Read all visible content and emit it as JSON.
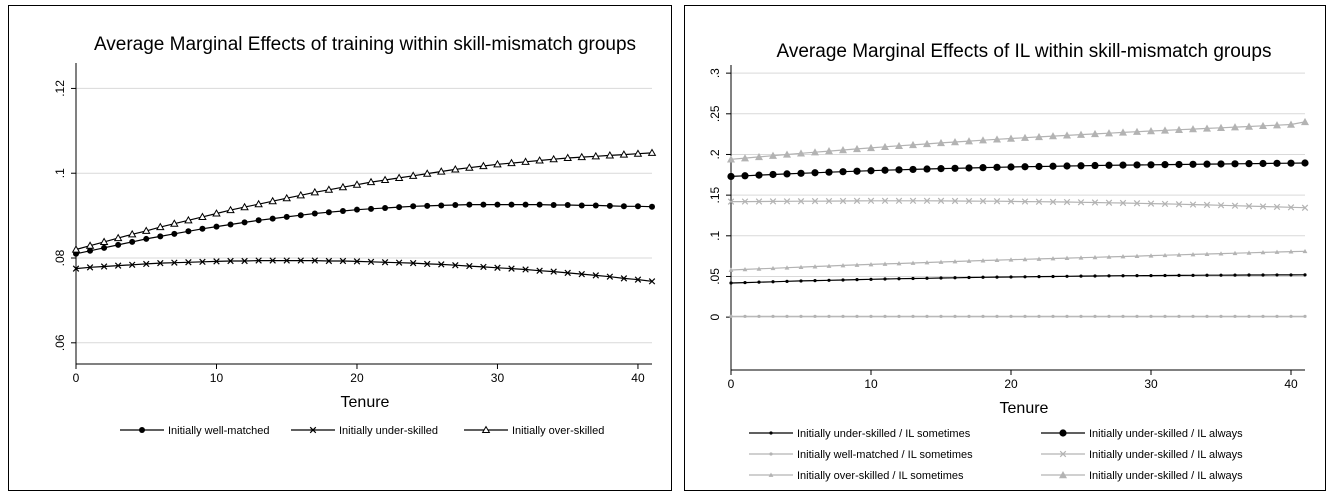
{
  "chart_data": [
    {
      "type": "line",
      "title": "Average Marginal Effects of training within skill-mismatch groups",
      "xlabel": "Tenure",
      "ylabel": "",
      "xlim": [
        0,
        41
      ],
      "ylim": [
        0.055,
        0.126
      ],
      "x_ticks": [
        0,
        10,
        20,
        30,
        40
      ],
      "x_tick_labels": [
        "0",
        "10",
        "20",
        "30",
        "40"
      ],
      "y_ticks": [
        0.06,
        0.08,
        0.1,
        0.12
      ],
      "y_tick_labels": [
        ".06",
        ".08",
        ".1",
        ".12"
      ],
      "grid": true,
      "legend_position": "bottom",
      "x": [
        0,
        1,
        2,
        3,
        4,
        5,
        6,
        7,
        8,
        9,
        10,
        11,
        12,
        13,
        14,
        15,
        16,
        17,
        18,
        19,
        20,
        21,
        22,
        23,
        24,
        25,
        26,
        27,
        28,
        29,
        30,
        31,
        32,
        33,
        34,
        35,
        36,
        37,
        38,
        39,
        40,
        41
      ],
      "series": [
        {
          "name": "Initially well-matched",
          "color": "#000000",
          "marker": "circle",
          "values": [
            0.081,
            0.0817,
            0.0824,
            0.0831,
            0.0838,
            0.0845,
            0.0851,
            0.0857,
            0.0863,
            0.0869,
            0.0874,
            0.0879,
            0.0884,
            0.0889,
            0.0893,
            0.0897,
            0.0901,
            0.0905,
            0.0908,
            0.0911,
            0.0914,
            0.0916,
            0.0918,
            0.092,
            0.0922,
            0.0923,
            0.0924,
            0.0925,
            0.0926,
            0.0926,
            0.0926,
            0.0926,
            0.0926,
            0.0926,
            0.0925,
            0.0925,
            0.0924,
            0.0924,
            0.0923,
            0.0922,
            0.0922,
            0.0921
          ]
        },
        {
          "name": "Initially under-skilled",
          "color": "#000000",
          "marker": "x",
          "values": [
            0.0775,
            0.0778,
            0.078,
            0.0782,
            0.0784,
            0.0786,
            0.0788,
            0.0789,
            0.079,
            0.0791,
            0.0792,
            0.0793,
            0.0793,
            0.0794,
            0.0794,
            0.0794,
            0.0794,
            0.0794,
            0.0793,
            0.0793,
            0.0792,
            0.0791,
            0.079,
            0.0789,
            0.0788,
            0.0786,
            0.0785,
            0.0783,
            0.0781,
            0.0779,
            0.0777,
            0.0775,
            0.0773,
            0.077,
            0.0768,
            0.0765,
            0.0762,
            0.0759,
            0.0756,
            0.0752,
            0.0749,
            0.0745
          ]
        },
        {
          "name": "Initially over-skilled",
          "color": "#000000",
          "marker": "triangle",
          "values": [
            0.082,
            0.0829,
            0.0838,
            0.0847,
            0.0856,
            0.0864,
            0.0873,
            0.0881,
            0.0889,
            0.0897,
            0.0905,
            0.0913,
            0.092,
            0.0927,
            0.0934,
            0.0941,
            0.0948,
            0.0955,
            0.0961,
            0.0967,
            0.0973,
            0.0979,
            0.0984,
            0.0989,
            0.0994,
            0.0999,
            0.1004,
            0.1009,
            0.1013,
            0.1017,
            0.1021,
            0.1024,
            0.1027,
            0.103,
            0.1033,
            0.1036,
            0.1038,
            0.104,
            0.1042,
            0.1044,
            0.1046,
            0.1048
          ]
        }
      ]
    },
    {
      "type": "line",
      "title": "Average Marginal Effects of IL within skill-mismatch groups",
      "xlabel": "Tenure",
      "ylabel": "",
      "xlim": [
        0,
        41
      ],
      "ylim": [
        -0.065,
        0.31
      ],
      "x_ticks": [
        0,
        10,
        20,
        30,
        40
      ],
      "x_tick_labels": [
        "0",
        "10",
        "20",
        "30",
        "40"
      ],
      "y_ticks": [
        0,
        0.05,
        0.1,
        0.15,
        0.2,
        0.25,
        0.3
      ],
      "y_tick_labels": [
        "0",
        ".05",
        ".1",
        ".15",
        ".2",
        ".25",
        ".3"
      ],
      "grid": true,
      "legend_position": "bottom",
      "x": [
        0,
        1,
        2,
        3,
        4,
        5,
        6,
        7,
        8,
        9,
        10,
        11,
        12,
        13,
        14,
        15,
        16,
        17,
        18,
        19,
        20,
        21,
        22,
        23,
        24,
        25,
        26,
        27,
        28,
        29,
        30,
        31,
        32,
        33,
        34,
        35,
        36,
        37,
        38,
        39,
        40,
        41
      ],
      "series": [
        {
          "name": "Initially under-skilled / IL sometimes",
          "color": "#000000",
          "marker": "small-circle",
          "values": [
            0.042,
            0.0425,
            0.043,
            0.0435,
            0.044,
            0.0445,
            0.0449,
            0.0453,
            0.0457,
            0.0461,
            0.0465,
            0.0469,
            0.0472,
            0.0475,
            0.0478,
            0.0481,
            0.0484,
            0.0487,
            0.049,
            0.0492,
            0.0494,
            0.0496,
            0.0498,
            0.05,
            0.0502,
            0.0504,
            0.0506,
            0.0508,
            0.0509,
            0.051,
            0.0511,
            0.0512,
            0.0513,
            0.0514,
            0.0515,
            0.0516,
            0.0517,
            0.0518,
            0.0518,
            0.0519,
            0.0519,
            0.052
          ]
        },
        {
          "name": "Initially under-skilled / IL always",
          "color": "#000000",
          "marker": "large-circle",
          "values": [
            0.173,
            0.1738,
            0.1746,
            0.1754,
            0.1761,
            0.1768,
            0.1775,
            0.1782,
            0.1788,
            0.1794,
            0.18,
            0.1806,
            0.1811,
            0.1816,
            0.1821,
            0.1826,
            0.183,
            0.1834,
            0.1838,
            0.1842,
            0.1846,
            0.1849,
            0.1852,
            0.1855,
            0.1858,
            0.1861,
            0.1864,
            0.1867,
            0.1869,
            0.1871,
            0.1873,
            0.1875,
            0.1877,
            0.1879,
            0.1881,
            0.1883,
            0.1885,
            0.1887,
            0.1889,
            0.1891,
            0.1893,
            0.1895
          ]
        },
        {
          "name": "Initially well-matched / IL sometimes",
          "color": "#b3b3b3",
          "marker": "small-circle",
          "values": [
            0.001,
            0.001,
            0.001,
            0.001,
            0.001,
            0.001,
            0.001,
            0.001,
            0.001,
            0.001,
            0.001,
            0.001,
            0.001,
            0.001,
            0.001,
            0.001,
            0.001,
            0.001,
            0.001,
            0.001,
            0.001,
            0.001,
            0.001,
            0.001,
            0.001,
            0.001,
            0.001,
            0.001,
            0.001,
            0.001,
            0.001,
            0.001,
            0.001,
            0.001,
            0.001,
            0.001,
            0.001,
            0.001,
            0.001,
            0.001,
            0.001,
            0.001
          ]
        },
        {
          "name": "Initially under-skilled / IL always",
          "color": "#b3b3b3",
          "marker": "x",
          "values": [
            0.142,
            0.1421,
            0.1422,
            0.1423,
            0.1424,
            0.1425,
            0.1426,
            0.1427,
            0.1428,
            0.1429,
            0.143,
            0.143,
            0.143,
            0.143,
            0.143,
            0.1429,
            0.1428,
            0.1427,
            0.1426,
            0.1425,
            0.1423,
            0.1421,
            0.1419,
            0.1417,
            0.1415,
            0.1412,
            0.1409,
            0.1406,
            0.1403,
            0.14,
            0.1396,
            0.1392,
            0.1388,
            0.1384,
            0.138,
            0.1375,
            0.137,
            0.1365,
            0.136,
            0.1355,
            0.135,
            0.1345
          ]
        },
        {
          "name": "Initially over-skilled / IL sometimes",
          "color": "#b3b3b3",
          "marker": "small-triangle",
          "values": [
            0.058,
            0.0587,
            0.0594,
            0.0601,
            0.0608,
            0.0615,
            0.0622,
            0.0629,
            0.0636,
            0.0642,
            0.0648,
            0.0654,
            0.066,
            0.0666,
            0.0672,
            0.0678,
            0.0684,
            0.069,
            0.0696,
            0.0701,
            0.0706,
            0.0711,
            0.0716,
            0.0721,
            0.0726,
            0.0731,
            0.0736,
            0.0741,
            0.0746,
            0.0751,
            0.0756,
            0.0761,
            0.0766,
            0.0771,
            0.0776,
            0.0781,
            0.0786,
            0.0791,
            0.0796,
            0.0801,
            0.0806,
            0.081
          ]
        },
        {
          "name": "Initially under-skilled / IL always",
          "color": "#b3b3b3",
          "marker": "large-triangle",
          "values": [
            0.194,
            0.1955,
            0.197,
            0.1985,
            0.2,
            0.2014,
            0.2028,
            0.2042,
            0.2055,
            0.2068,
            0.2081,
            0.2094,
            0.2106,
            0.2118,
            0.213,
            0.2142,
            0.2153,
            0.2164,
            0.2175,
            0.2186,
            0.2196,
            0.2206,
            0.2216,
            0.2226,
            0.2235,
            0.2244,
            0.2253,
            0.2262,
            0.2271,
            0.228,
            0.2288,
            0.2296,
            0.2304,
            0.2312,
            0.232,
            0.2328,
            0.2336,
            0.2344,
            0.2352,
            0.236,
            0.2368,
            0.24
          ]
        }
      ]
    }
  ]
}
